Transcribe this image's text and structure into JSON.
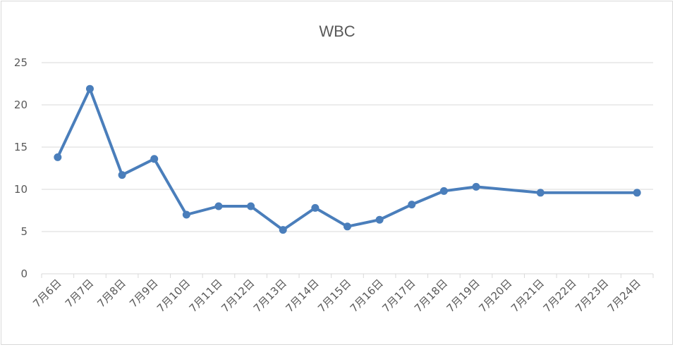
{
  "chart_data": {
    "type": "line",
    "title": "WBC",
    "xlabel": "",
    "ylabel": "",
    "ylim": [
      0,
      25
    ],
    "yticks": [
      0,
      5,
      10,
      15,
      20,
      25
    ],
    "grid": true,
    "legend": "none",
    "categories": [
      "7月6日",
      "7月7日",
      "7月8日",
      "7月9日",
      "7月10日",
      "7月11日",
      "7月12日",
      "7月13日",
      "7月14日",
      "7月15日",
      "7月16日",
      "7月17日",
      "7月18日",
      "7月19日",
      "7月20日",
      "7月21日",
      "7月22日",
      "7月23日",
      "7月24日"
    ],
    "series": [
      {
        "values": [
          13.8,
          21.9,
          11.7,
          13.6,
          7.0,
          8.0,
          8.0,
          5.2,
          7.8,
          5.6,
          6.4,
          8.2,
          9.8,
          10.3,
          null,
          9.6,
          null,
          null,
          9.6
        ],
        "color": "#4a7ebb"
      }
    ]
  },
  "colors": {
    "gridline": "#d9d9d9",
    "axis": "#d9d9d9",
    "text": "#595959"
  }
}
